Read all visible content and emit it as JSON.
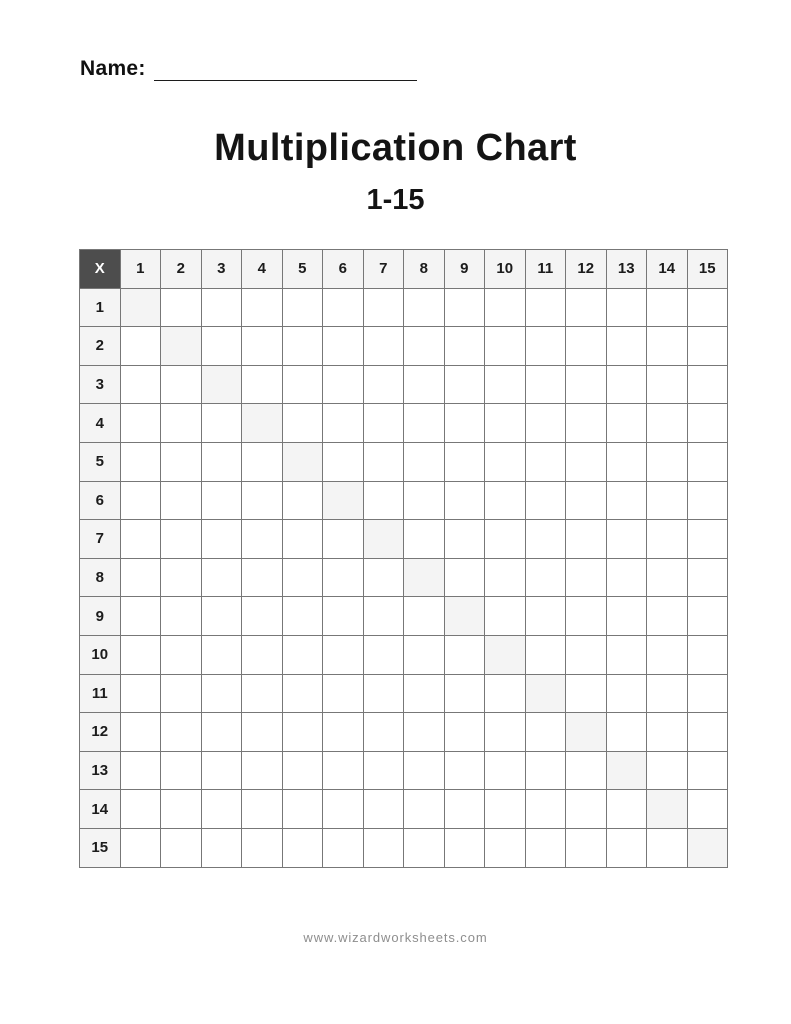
{
  "page": {
    "name_label": "Name:",
    "title": "Multiplication Chart",
    "subtitle": "1-15",
    "footer": "www.wizardworksheets.com"
  },
  "chart_data": {
    "type": "table",
    "title": "Multiplication Chart 1-15",
    "operator_symbol": "X",
    "column_headers": [
      "1",
      "2",
      "3",
      "4",
      "5",
      "6",
      "7",
      "8",
      "9",
      "10",
      "11",
      "12",
      "13",
      "14",
      "15"
    ],
    "row_headers": [
      "1",
      "2",
      "3",
      "4",
      "5",
      "6",
      "7",
      "8",
      "9",
      "10",
      "11",
      "12",
      "13",
      "14",
      "15"
    ],
    "cells_blank": true,
    "diagonal_shaded": true
  },
  "colors": {
    "operator_cell_bg": "#4d4d4d",
    "operator_cell_text": "#ffffff",
    "header_cell_bg": "#f4f4f4",
    "diagonal_cell_bg": "#f4f4f4",
    "grid_line": "#777777",
    "title_text": "#141414",
    "footer_text": "#8e8e8e"
  }
}
